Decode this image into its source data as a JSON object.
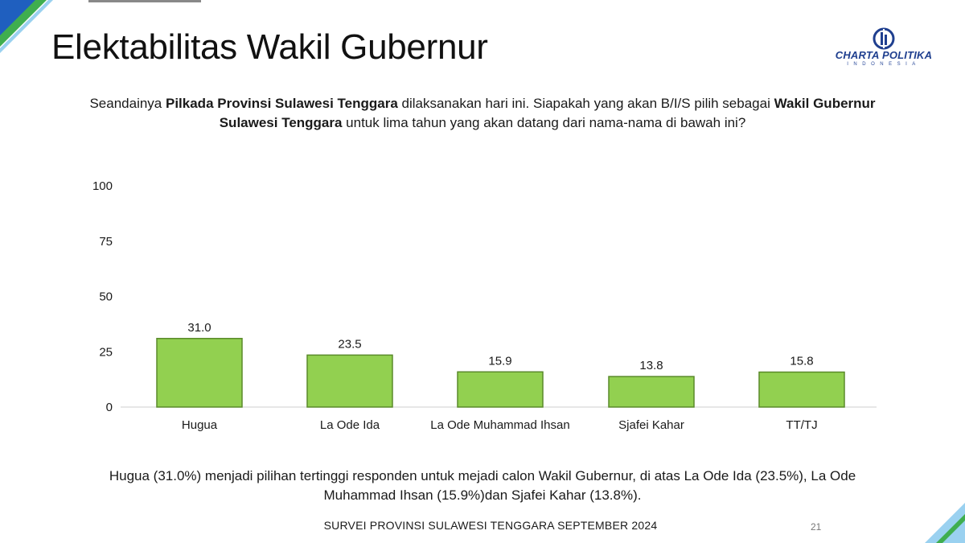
{
  "header": {
    "title": "Elektabilitas Wakil Gubernur",
    "logo": {
      "name": "CHARTA POLITIKA",
      "sub": "INDONESIA"
    }
  },
  "question": {
    "p1": "Seandainya ",
    "b1": "Pilkada Provinsi Sulawesi Tenggara",
    "p2": " dilaksanakan hari ini. Siapakah yang akan B/I/S pilih sebagai ",
    "b2": "Wakil Gubernur Sulawesi Tenggara",
    "p3": " untuk lima tahun yang akan datang dari nama-nama di bawah ini?"
  },
  "chart_data": {
    "type": "bar",
    "categories": [
      "Hugua",
      "La Ode Ida",
      "La Ode Muhammad Ihsan",
      "Sjafei Kahar",
      "TT/TJ"
    ],
    "values": [
      31.0,
      23.5,
      15.9,
      13.8,
      15.8
    ],
    "value_labels": [
      "31.0",
      "23.5",
      "15.9",
      "13.8",
      "15.8"
    ],
    "ylim": [
      0,
      100
    ],
    "yticks": [
      0,
      25,
      50,
      75,
      100
    ],
    "grid": false,
    "bar_color": "#92d050",
    "bar_border": "#5a8a2a"
  },
  "summary": {
    "line1": "Hugua (31.0%) menjadi pilihan tertinggi responden untuk mejadi calon Wakil Gubernur, di atas La Ode Ida (23.5%), La Ode",
    "line2": "Muhammad Ihsan (15.9%)dan Sjafei Kahar (13.8%)."
  },
  "footer": {
    "text": "SURVEI PROVINSI SULAWESI TENGGARA SEPTEMBER 2024",
    "page": "21"
  },
  "colors": {
    "accent_green": "#2e9e4a",
    "accent_blue": "#1f5fbf",
    "logo_blue": "#1f3f8f"
  },
  "icons": {
    "logo": "charta-politika-logo-icon"
  }
}
